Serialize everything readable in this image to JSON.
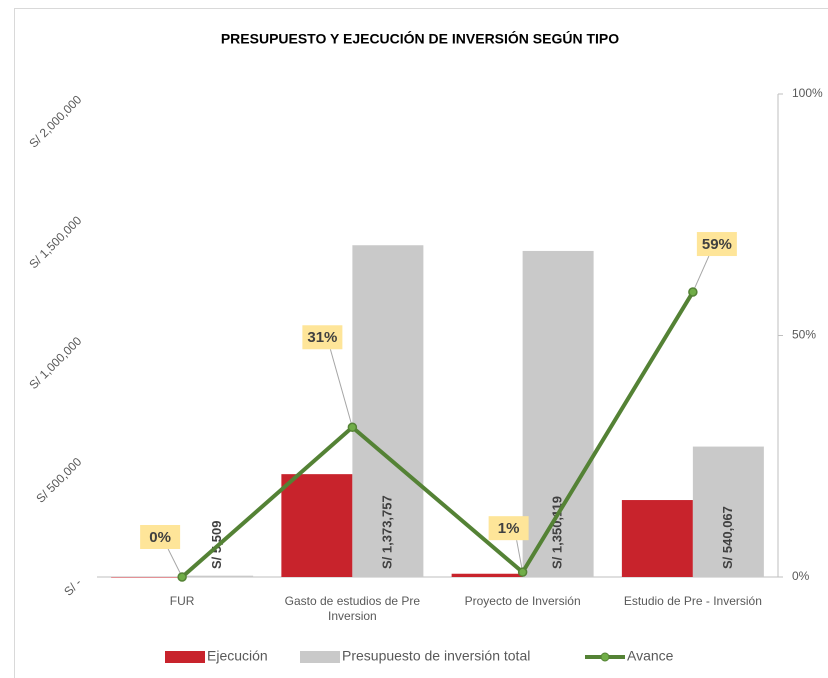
{
  "chart_data": {
    "type": "bar",
    "title": "PRESUPUESTO Y EJECUCIÓN DE INVERSIÓN SEGÚN TIPO",
    "categories": [
      "FUR",
      "Gasto de estudios de Pre Inversion",
      "Proyecto de Inversión",
      "Estudio de Pre - Inversión"
    ],
    "series": [
      {
        "name": "Ejecución",
        "color": "#c8232c",
        "values": [
          0,
          425865,
          13501,
          318640
        ]
      },
      {
        "name": "Presupuesto de inversión total",
        "color": "#c9c9c9",
        "values": [
          5509,
          1373757,
          1350119,
          540067
        ],
        "value_labels": [
          "S/ 5,509",
          "S/ 1,373,757",
          "S/ 1,350,119",
          "S/ 540,067"
        ]
      },
      {
        "name": "Avance",
        "type": "line",
        "axis": "y2",
        "color": "#548235",
        "values": [
          0,
          31,
          1,
          59
        ],
        "value_labels": [
          "0%",
          "31%",
          "1%",
          "59%"
        ]
      }
    ],
    "ylim": [
      0,
      2000000
    ],
    "yticks": [
      {
        "value": 0,
        "label": "S/ -"
      },
      {
        "value": 500000,
        "label": "S/ 500,000"
      },
      {
        "value": 1000000,
        "label": "S/ 1,000,000"
      },
      {
        "value": 1500000,
        "label": "S/ 1,500,000"
      },
      {
        "value": 2000000,
        "label": "S/ 2,000,000"
      }
    ],
    "y2lim": [
      0,
      100
    ],
    "y2ticks": [
      {
        "value": 0,
        "label": "0%"
      },
      {
        "value": 50,
        "label": "50%"
      },
      {
        "value": 100,
        "label": "100%"
      }
    ],
    "legend": "bottom"
  }
}
